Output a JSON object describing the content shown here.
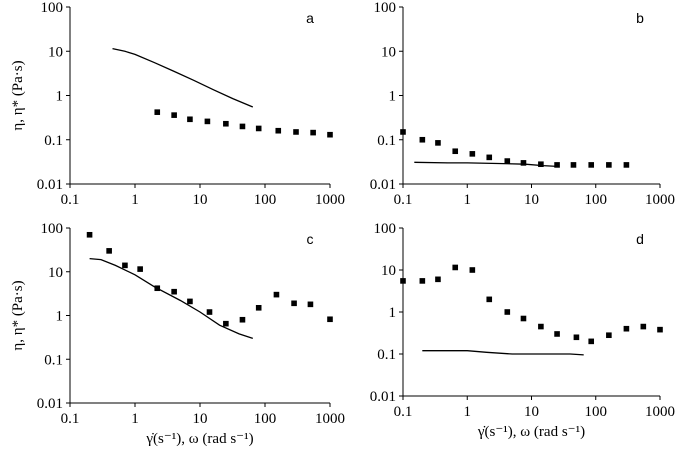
{
  "chart_data": [
    {
      "panel": "a",
      "type": "scatter",
      "xscale": "log",
      "yscale": "log",
      "xlim": [
        0.1,
        1000
      ],
      "ylim": [
        0.01,
        100
      ],
      "xticks": [
        "0.1",
        "1",
        "10",
        "100",
        "1000"
      ],
      "yticks": [
        "0.01",
        "0.1",
        "1",
        "10",
        "100"
      ],
      "xlabel": "",
      "ylabel": "η, η* (Pa·s)",
      "series": [
        {
          "name": "line",
          "kind": "line",
          "x": [
            0.45,
            0.7,
            1.0,
            2.0,
            4.0,
            8.0,
            16.0,
            32.0,
            65.0
          ],
          "y": [
            11.5,
            10.0,
            8.5,
            5.5,
            3.5,
            2.2,
            1.35,
            0.85,
            0.55
          ]
        },
        {
          "name": "squares",
          "kind": "marker",
          "x": [
            2.2,
            4.0,
            7.0,
            13.0,
            25.0,
            45.0,
            80.0,
            160.0,
            300.0,
            550.0,
            1000.0
          ],
          "y": [
            0.42,
            0.36,
            0.29,
            0.26,
            0.23,
            0.2,
            0.18,
            0.16,
            0.15,
            0.145,
            0.13
          ]
        }
      ]
    },
    {
      "panel": "b",
      "type": "scatter",
      "xscale": "log",
      "yscale": "log",
      "xlim": [
        0.1,
        1000
      ],
      "ylim": [
        0.01,
        100
      ],
      "xticks": [
        "0.1",
        "1",
        "10",
        "100",
        "1000"
      ],
      "yticks": [
        "0.01",
        "0.1",
        "1",
        "10",
        "100"
      ],
      "xlabel": "",
      "ylabel": "",
      "series": [
        {
          "name": "line",
          "kind": "line",
          "x": [
            0.15,
            0.5,
            1.0,
            3.0,
            8.0,
            15.0,
            25.0
          ],
          "y": [
            0.031,
            0.03,
            0.03,
            0.029,
            0.028,
            0.026,
            0.025
          ]
        },
        {
          "name": "squares",
          "kind": "marker",
          "x": [
            0.1,
            0.2,
            0.35,
            0.65,
            1.2,
            2.2,
            4.2,
            7.5,
            14.0,
            25.0,
            45.0,
            85.0,
            160.0,
            300.0
          ],
          "y": [
            0.15,
            0.1,
            0.085,
            0.055,
            0.048,
            0.04,
            0.033,
            0.03,
            0.028,
            0.027,
            0.027,
            0.027,
            0.027,
            0.027
          ]
        }
      ]
    },
    {
      "panel": "c",
      "type": "scatter",
      "xscale": "log",
      "yscale": "log",
      "xlim": [
        0.1,
        1000
      ],
      "ylim": [
        0.01,
        100
      ],
      "xticks": [
        "0.1",
        "1",
        "10",
        "100",
        "1000"
      ],
      "yticks": [
        "0.01",
        "0.1",
        "1",
        "10",
        "100"
      ],
      "xlabel": "γ̇(s⁻¹), ω (rad s⁻¹)",
      "ylabel": "η, η* (Pa·s)",
      "series": [
        {
          "name": "line",
          "kind": "line",
          "x": [
            0.2,
            0.3,
            0.5,
            1.0,
            2.0,
            5.0,
            10.0,
            20.0,
            40.0,
            65.0
          ],
          "y": [
            20.0,
            19.0,
            14.0,
            8.5,
            4.5,
            2.2,
            1.2,
            0.6,
            0.38,
            0.3
          ]
        },
        {
          "name": "squares",
          "kind": "marker",
          "x": [
            0.2,
            0.4,
            0.7,
            1.2,
            2.2,
            4.0,
            7.0,
            14.0,
            25.0,
            45.0,
            80.0,
            150.0,
            280.0,
            500.0,
            1000.0
          ],
          "y": [
            70.0,
            30.0,
            14.0,
            11.5,
            4.2,
            3.5,
            2.1,
            1.2,
            0.65,
            0.8,
            1.5,
            3.0,
            1.9,
            1.8,
            0.82
          ]
        }
      ]
    },
    {
      "panel": "d",
      "type": "scatter",
      "xscale": "log",
      "yscale": "log",
      "xlim": [
        0.1,
        1000
      ],
      "ylim": [
        0.01,
        100
      ],
      "xticks": [
        "0.1",
        "1",
        "10",
        "100",
        "1000"
      ],
      "yticks": [
        "0.01",
        "0.1",
        "1",
        "10",
        "100"
      ],
      "xlabel": "γ̇(s⁻¹), ω (rad s⁻¹)",
      "ylabel": "",
      "series": [
        {
          "name": "line",
          "kind": "line",
          "x": [
            0.2,
            0.5,
            1.0,
            2.0,
            5.0,
            10.0,
            20.0,
            40.0,
            65.0
          ],
          "y": [
            0.12,
            0.12,
            0.12,
            0.11,
            0.1,
            0.1,
            0.1,
            0.1,
            0.095
          ]
        },
        {
          "name": "squares",
          "kind": "marker",
          "x": [
            0.1,
            0.2,
            0.35,
            0.65,
            1.2,
            2.2,
            4.2,
            7.5,
            14.0,
            25.0,
            50.0,
            85.0,
            160.0,
            300.0,
            550.0,
            1000.0
          ],
          "y": [
            5.5,
            5.5,
            6.0,
            11.5,
            10.0,
            2.0,
            1.0,
            0.7,
            0.45,
            0.3,
            0.25,
            0.2,
            0.28,
            0.4,
            0.45,
            0.38
          ]
        }
      ]
    }
  ]
}
